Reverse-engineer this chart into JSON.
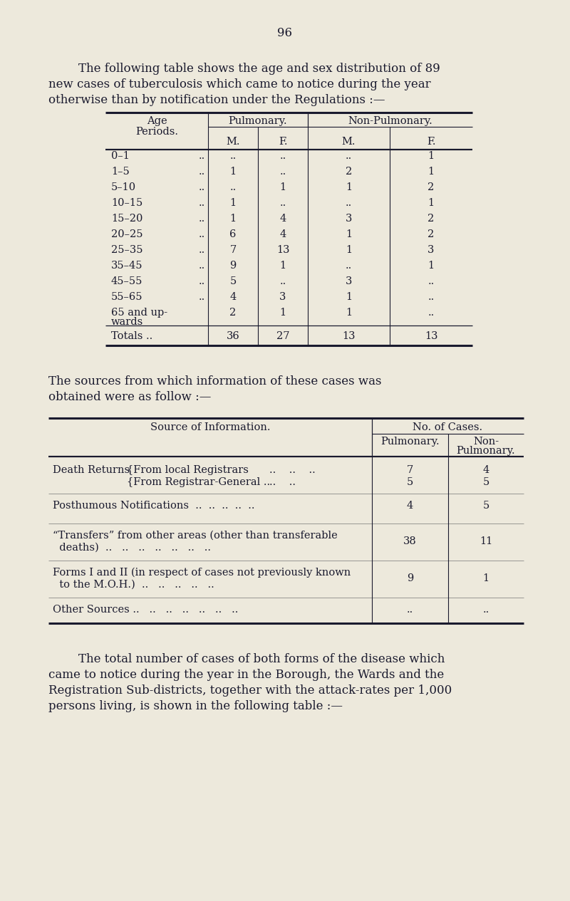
{
  "bg_color": "#ede9dc",
  "page_number": "96",
  "intro_text_1": "The following table shows the age and sex distribution of 89",
  "intro_text_2": "new cases of tuberculosis which came to notice during the year",
  "intro_text_3": "otherwise than by notification under the Regulations :—",
  "table1_rows": [
    [
      "0–1",
      "..",
      "..",
      "..",
      "1"
    ],
    [
      "1–5",
      "1",
      "..",
      "2",
      "1"
    ],
    [
      "5–10",
      "..",
      "1",
      "1",
      "2"
    ],
    [
      "10–15",
      "1",
      "..",
      "..",
      "1"
    ],
    [
      "15–20",
      "1",
      "4",
      "3",
      "2"
    ],
    [
      "20–25",
      "6",
      "4",
      "1",
      "2"
    ],
    [
      "25–35",
      "7",
      "13",
      "1",
      "3"
    ],
    [
      "35–45",
      "9",
      "1",
      "..",
      "1"
    ],
    [
      "45–55",
      "5",
      "..",
      "3",
      ".."
    ],
    [
      "55–65",
      "4",
      "3",
      "1",
      ".."
    ],
    [
      "65 and up-",
      "2",
      "1",
      "1",
      ".."
    ]
  ],
  "table1_totals": [
    "Totals ..",
    "36",
    "27",
    "13",
    "13"
  ],
  "middle_text_1": "The sources from which information of these cases was",
  "middle_text_2": "obtained were as follow :—",
  "footer_text_1": "The total number of cases of both forms of the disease which",
  "footer_text_2": "came to notice during the year in the Borough, the Wards and the",
  "footer_text_3": "Registration Sub-districts, together with the attack-rates per 1,000",
  "footer_text_4": "persons living, is shown in the following table :—"
}
